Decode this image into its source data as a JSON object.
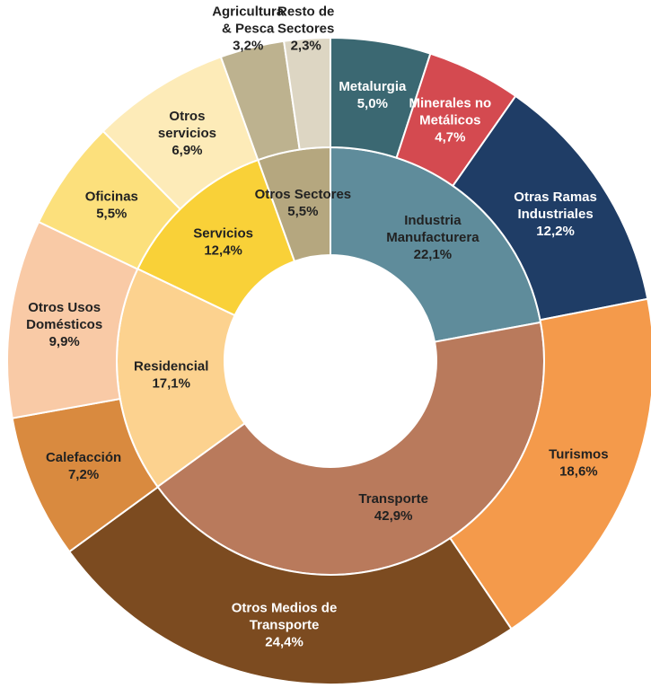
{
  "chart_data": {
    "type": "sunburst",
    "rings": [
      {
        "labels": [
          [
            "Industria",
            "Manufacturera"
          ],
          [
            "Transporte"
          ],
          [
            "Residencial"
          ],
          [
            "Servicios"
          ],
          [
            "Otros Sectores"
          ]
        ],
        "values": [
          22.1,
          42.9,
          17.1,
          12.4,
          5.5
        ],
        "value_labels": [
          "22,1%",
          "42,9%",
          "17,1%",
          "12,4%",
          "5,5%"
        ],
        "colors": [
          "#5f8c9b",
          "#b97a5c",
          "#fcd28f",
          "#f9d138",
          "#b5a77f"
        ]
      },
      {
        "labels": [
          [
            "Metalurgia"
          ],
          [
            "Minerales no",
            "Metálicos"
          ],
          [
            "Otras Ramas",
            "Industriales"
          ],
          [
            "Turismos"
          ],
          [
            "Otros Medios de",
            "Transporte"
          ],
          [
            "Calefacción"
          ],
          [
            "Otros Usos",
            "Domésticos"
          ],
          [
            "Oficinas"
          ],
          [
            "Otros",
            "servicios"
          ],
          [
            "Agricultura",
            "& Pesca"
          ],
          [
            "Resto de",
            "Sectores"
          ]
        ],
        "values": [
          5.0,
          4.7,
          12.2,
          18.6,
          24.4,
          7.2,
          9.9,
          5.5,
          6.9,
          3.2,
          2.3
        ],
        "value_labels": [
          "5,0%",
          "4,7%",
          "12,2%",
          "18,6%",
          "24,4%",
          "7,2%",
          "9,9%",
          "5,5%",
          "6,9%",
          "3,2%",
          "2,3%"
        ],
        "colors": [
          "#3b6872",
          "#d44a50",
          "#1f3d66",
          "#f49a4b",
          "#7c4b20",
          "#d98a3f",
          "#f9caa6",
          "#fce07c",
          "#fdebb8",
          "#bdb28f",
          "#ddd6c3"
        ]
      }
    ]
  }
}
